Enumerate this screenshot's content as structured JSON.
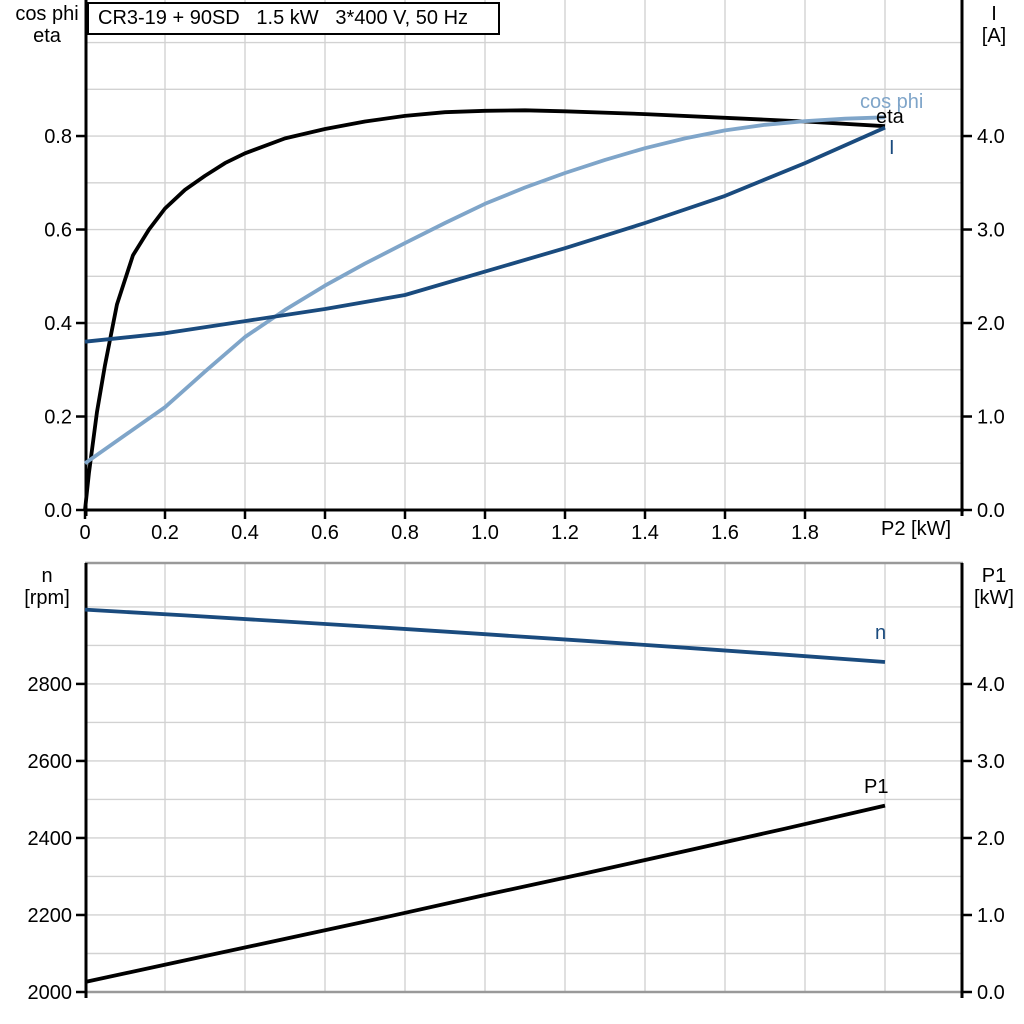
{
  "title_box": {
    "text": "CR3-19 + 90SD   1.5 kW   3*400 V, 50 Hz"
  },
  "colors": {
    "black": "#000000",
    "dark_blue": "#1a4b7e",
    "light_blue": "#7fa5c9",
    "grid": "#d2d2d2",
    "panel_border": "#999999"
  },
  "chart_data": [
    {
      "id": "top",
      "type": "line",
      "title": "CR3-19 + 90SD   1.5 kW   3*400 V, 50 Hz",
      "grid": true,
      "legend_position": "curve-end-labels",
      "x_axis": {
        "label": "P2 [kW]",
        "range": [
          0,
          2.195
        ],
        "tick_values": [
          0,
          0.2,
          0.4,
          0.6,
          0.8,
          1.0,
          1.2,
          1.4,
          1.6,
          1.8
        ],
        "tick_labels": [
          "0",
          "0.2",
          "0.4",
          "0.6",
          "0.8",
          "1.0",
          "1.2",
          "1.4",
          "1.6",
          "1.8"
        ],
        "grid_step": 0.2,
        "grid_max": 2.0
      },
      "left_axis": {
        "title_lines": [
          "cos phi",
          "eta"
        ],
        "range": [
          0,
          1.091
        ],
        "tick_values": [
          0,
          0.2,
          0.4,
          0.6,
          0.8
        ],
        "tick_labels": [
          "0.0",
          "0.2",
          "0.4",
          "0.6",
          "0.8"
        ],
        "grid_step": 0.1,
        "grid_max": 1.0
      },
      "right_axis": {
        "title_lines": [
          "I",
          "[A]"
        ],
        "range": [
          0,
          5.455
        ],
        "tick_values": [
          0,
          1,
          2,
          3,
          4
        ],
        "tick_labels": [
          "0.0",
          "1.0",
          "2.0",
          "3.0",
          "4.0"
        ]
      },
      "series": [
        {
          "name": "eta",
          "axis": "left",
          "color_key": "black",
          "x": [
            0,
            0.01,
            0.03,
            0.05,
            0.08,
            0.12,
            0.16,
            0.2,
            0.25,
            0.3,
            0.35,
            0.4,
            0.5,
            0.6,
            0.7,
            0.8,
            0.9,
            1.0,
            1.1,
            1.2,
            1.4,
            1.6,
            1.8,
            2.0
          ],
          "y": [
            0,
            0.08,
            0.21,
            0.31,
            0.44,
            0.545,
            0.6,
            0.645,
            0.685,
            0.715,
            0.742,
            0.763,
            0.795,
            0.815,
            0.831,
            0.843,
            0.851,
            0.854,
            0.855,
            0.853,
            0.847,
            0.839,
            0.831,
            0.821
          ]
        },
        {
          "name": "cos phi",
          "axis": "left",
          "color_key": "light_blue",
          "x": [
            0,
            0.1,
            0.2,
            0.3,
            0.4,
            0.5,
            0.6,
            0.7,
            0.8,
            0.9,
            1.0,
            1.1,
            1.2,
            1.3,
            1.4,
            1.5,
            1.6,
            1.7,
            1.8,
            1.9,
            2.0
          ],
          "y": [
            0.1,
            0.16,
            0.22,
            0.296,
            0.37,
            0.428,
            0.48,
            0.527,
            0.571,
            0.614,
            0.655,
            0.69,
            0.721,
            0.749,
            0.774,
            0.795,
            0.812,
            0.824,
            0.832,
            0.837,
            0.84
          ]
        },
        {
          "name": "I",
          "axis": "right",
          "color_key": "dark_blue",
          "x": [
            0,
            0.2,
            0.4,
            0.6,
            0.8,
            1.0,
            1.2,
            1.4,
            1.6,
            1.8,
            2.0
          ],
          "y": [
            1.8,
            1.89,
            2.02,
            2.15,
            2.3,
            2.55,
            2.8,
            3.07,
            3.36,
            3.71,
            4.09
          ]
        }
      ]
    },
    {
      "id": "bottom",
      "type": "line",
      "title": "",
      "grid": true,
      "legend_position": "curve-end-labels",
      "x_axis": {
        "label": "",
        "range": [
          0,
          2.195
        ],
        "tick_values": [],
        "tick_labels": [],
        "grid_step": 0.2,
        "grid_max": 2.0
      },
      "left_axis": {
        "title_lines": [
          "n",
          "[rpm]"
        ],
        "range": [
          2000,
          3114
        ],
        "tick_values": [
          2000,
          2200,
          2400,
          2600,
          2800
        ],
        "tick_labels": [
          "2000",
          "2200",
          "2400",
          "2600",
          "2800"
        ],
        "grid_step": 100,
        "grid_max": 3000
      },
      "right_axis": {
        "title_lines": [
          "P1",
          "[kW]"
        ],
        "range": [
          0,
          5.571
        ],
        "tick_values": [
          0,
          1,
          2,
          3,
          4
        ],
        "tick_labels": [
          "0.0",
          "1.0",
          "2.0",
          "3.0",
          "4.0"
        ]
      },
      "series": [
        {
          "name": "n",
          "axis": "left",
          "color_key": "dark_blue",
          "x": [
            0,
            0.25,
            0.5,
            0.75,
            1.0,
            1.25,
            1.5,
            1.75,
            2.0
          ],
          "y": [
            2993,
            2978,
            2962,
            2946,
            2929,
            2912,
            2894,
            2876,
            2857
          ]
        },
        {
          "name": "P1",
          "axis": "right",
          "color_key": "black",
          "x": [
            0,
            0.25,
            0.5,
            0.75,
            1.0,
            1.25,
            1.5,
            1.75,
            2.0
          ],
          "y": [
            0.13,
            0.41,
            0.69,
            0.97,
            1.26,
            1.54,
            1.83,
            2.12,
            2.42
          ]
        }
      ]
    }
  ]
}
